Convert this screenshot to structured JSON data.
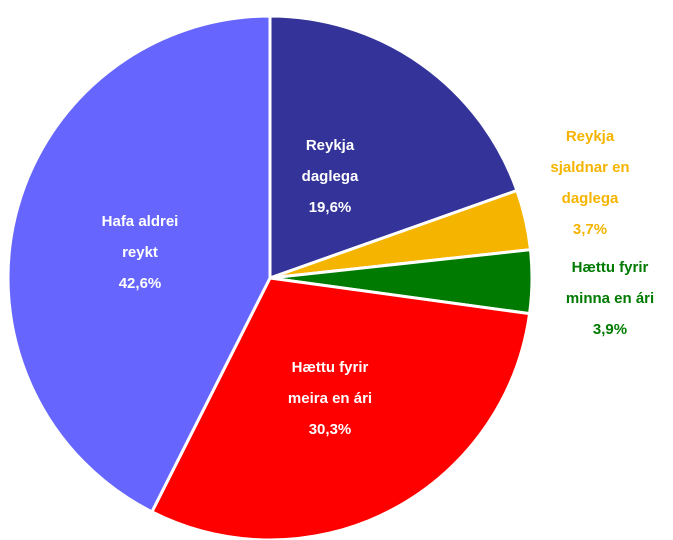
{
  "chart_data": {
    "type": "pie",
    "categories": [
      [
        "Reykja",
        "daglega"
      ],
      [
        "Reykja",
        "sjaldnar en",
        "daglega"
      ],
      [
        "Hættu fyrir",
        "minna en ári"
      ],
      [
        "Hættu fyrir",
        "meira en ári"
      ],
      [
        "Hafa aldrei",
        "reykt"
      ]
    ],
    "values": [
      19.6,
      3.7,
      3.9,
      30.3,
      42.6
    ],
    "value_labels": [
      "19,6%",
      "3,7%",
      "3,9%",
      "30,3%",
      "42,6%"
    ],
    "colors": [
      "#333399",
      "#f5b400",
      "#007a00",
      "#ff0000",
      "#6666ff"
    ]
  }
}
